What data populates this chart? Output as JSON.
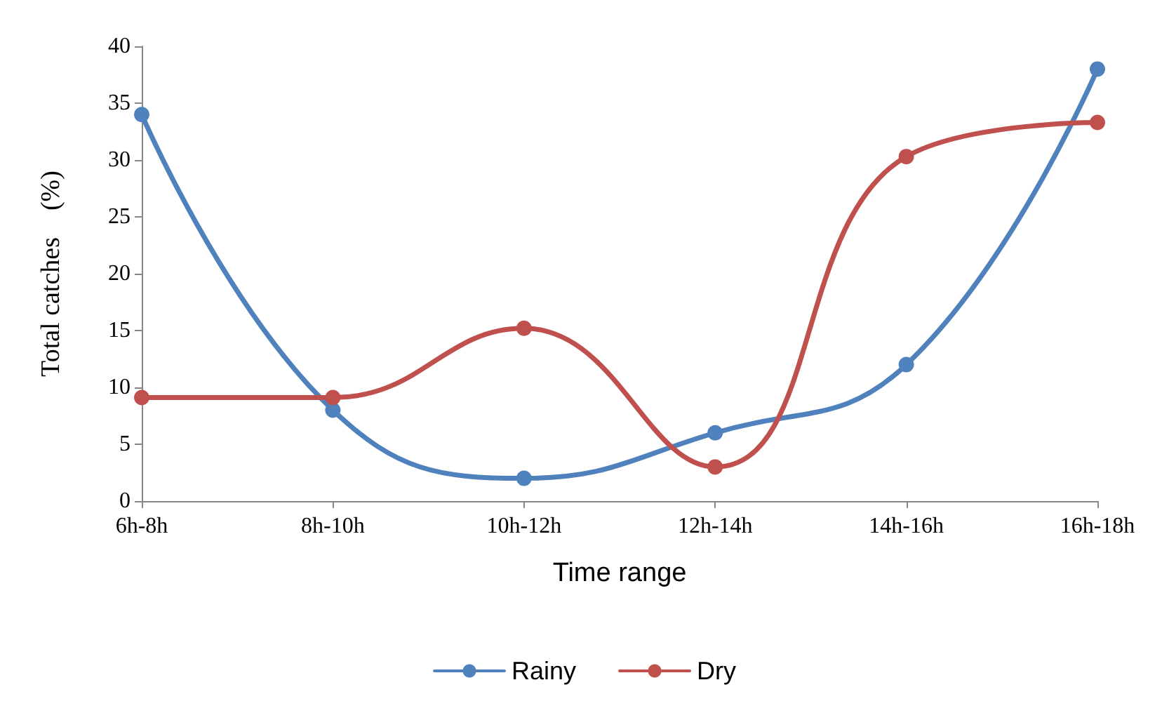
{
  "chart_data": {
    "type": "line",
    "xlabel": "Time range",
    "ylabel": "Total catches    (%)",
    "categories": [
      "6h-8h",
      "8h-10h",
      "10h-12h",
      "12h-14h",
      "14h-16h",
      "16h-18h"
    ],
    "series": [
      {
        "name": "Rainy",
        "color": "#4f81bd",
        "values": [
          34,
          8,
          2,
          6,
          12,
          38
        ]
      },
      {
        "name": "Dry",
        "color": "#c0504d",
        "values": [
          9.1,
          9.1,
          15.2,
          3,
          30.3,
          33.3
        ]
      }
    ],
    "ylim": [
      0,
      40
    ],
    "yticks": [
      0,
      5,
      10,
      15,
      20,
      25,
      30,
      35,
      40
    ],
    "grid": false,
    "legend": "bottom",
    "marker": "circle",
    "line_style": "solid"
  }
}
